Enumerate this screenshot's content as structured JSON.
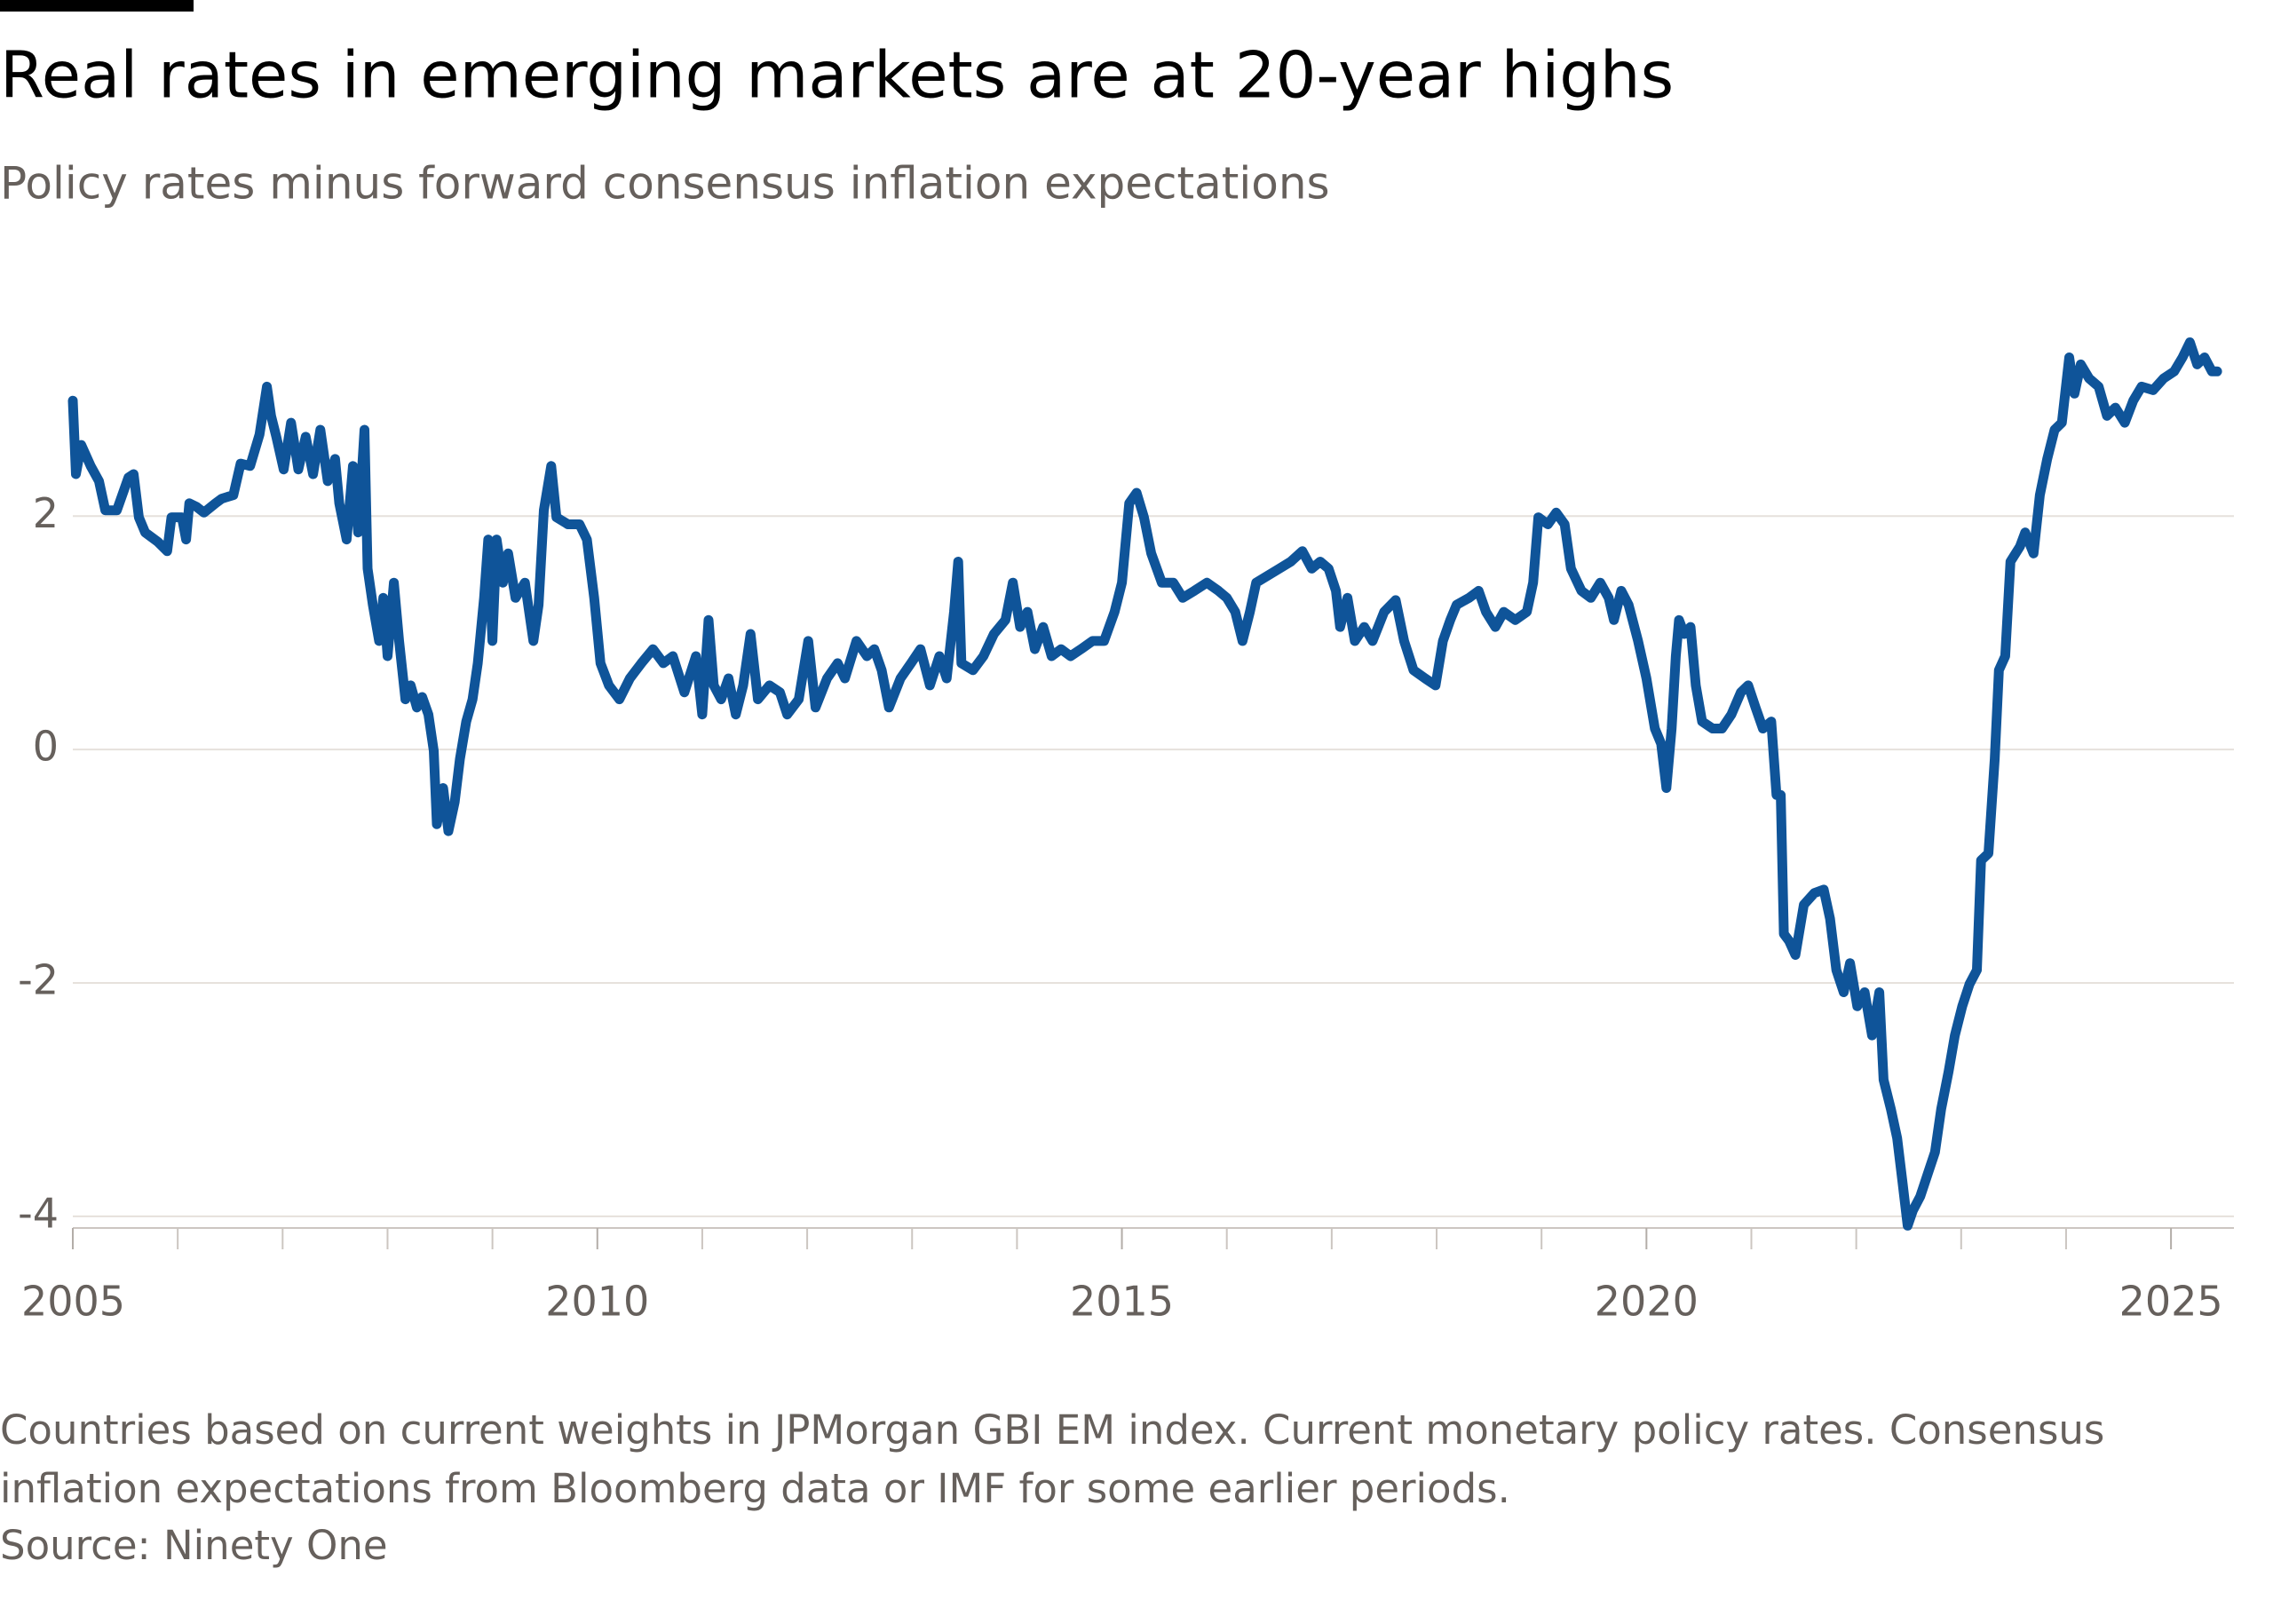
{
  "chart_data": {
    "type": "line",
    "title": "Real rates in emerging markets are at 20-year highs",
    "subtitle": "Policy rates minus forward consensus inflation expectations",
    "notes": [
      "Countries based on current weights in JPMorgan GBI EM index. Current monetary policy rates. Consensus",
      "inflation expectations from Bloomberg data or IMF for some earlier periods."
    ],
    "source": "Source: Ninety One",
    "xlim": [
      2005,
      2025.6
    ],
    "xticks": [
      2005,
      2010,
      2015,
      2020,
      2025
    ],
    "xminorticks": [
      2006,
      2007,
      2008,
      2009,
      2011,
      2012,
      2013,
      2014,
      2016,
      2017,
      2018,
      2019,
      2021,
      2022,
      2023,
      2024
    ],
    "ylim": [
      -4.1,
      3.6
    ],
    "yticks": [
      2,
      0,
      -2,
      -4
    ],
    "grid": true,
    "series": [
      {
        "color": "#0f5499",
        "x": [
          2005,
          2005.03,
          2005.08,
          2005.17,
          2005.25,
          2005.31,
          2005.42,
          2005.53,
          2005.58,
          2005.63,
          2005.69,
          2005.81,
          2005.9,
          2005.94,
          2006.04,
          2006.08,
          2006.11,
          2006.18,
          2006.25,
          2006.36,
          2006.42,
          2006.53,
          2006.6,
          2006.69,
          2006.78,
          2006.85,
          2006.89,
          2006.94,
          2007.01,
          2007.08,
          2007.15,
          2007.22,
          2007.29,
          2007.36,
          2007.43,
          2007.5,
          2007.54,
          2007.61,
          2007.67,
          2007.72,
          2007.78,
          2007.81,
          2007.86,
          2007.92,
          2007.96,
          2008.0,
          2008.06,
          2008.11,
          2008.17,
          2008.22,
          2008.28,
          2008.33,
          2008.39,
          2008.44,
          2008.47,
          2008.53,
          2008.58,
          2008.64,
          2008.69,
          2008.75,
          2008.81,
          2008.86,
          2008.92,
          2008.96,
          2009.0,
          2009.04,
          2009.1,
          2009.15,
          2009.22,
          2009.31,
          2009.39,
          2009.44,
          2009.49,
          2009.56,
          2009.61,
          2009.72,
          2009.83,
          2009.9,
          2009.97,
          2010.03,
          2010.11,
          2010.21,
          2010.31,
          2010.42,
          2010.53,
          2010.63,
          2010.72,
          2010.83,
          2010.94,
          2011.0,
          2011.06,
          2011.11,
          2011.18,
          2011.25,
          2011.32,
          2011.39,
          2011.46,
          2011.53,
          2011.64,
          2011.74,
          2011.81,
          2011.92,
          2012.01,
          2012.08,
          2012.19,
          2012.29,
          2012.36,
          2012.47,
          2012.57,
          2012.64,
          2012.71,
          2012.78,
          2012.89,
          2012.99,
          2013.08,
          2013.17,
          2013.26,
          2013.33,
          2013.4,
          2013.44,
          2013.47,
          2013.58,
          2013.68,
          2013.78,
          2013.89,
          2013.96,
          2014.03,
          2014.1,
          2014.17,
          2014.25,
          2014.33,
          2014.42,
          2014.51,
          2014.61,
          2014.72,
          2014.83,
          2014.93,
          2015.0,
          2015.07,
          2015.14,
          2015.21,
          2015.28,
          2015.38,
          2015.49,
          2015.58,
          2015.69,
          2015.81,
          2015.92,
          2016.0,
          2016.08,
          2016.15,
          2016.22,
          2016.28,
          2016.39,
          2016.5,
          2016.61,
          2016.72,
          2016.81,
          2016.89,
          2016.97,
          2017.04,
          2017.08,
          2017.15,
          2017.22,
          2017.31,
          2017.39,
          2017.5,
          2017.61,
          2017.69,
          2017.78,
          2017.89,
          2017.99,
          2018.06,
          2018.13,
          2018.19,
          2018.31,
          2018.4,
          2018.47,
          2018.56,
          2018.64,
          2018.75,
          2018.86,
          2018.92,
          2018.97,
          2019.06,
          2019.14,
          2019.22,
          2019.28,
          2019.38,
          2019.47,
          2019.56,
          2019.64,
          2019.69,
          2019.76,
          2019.83,
          2019.92,
          2020.0,
          2020.08,
          2020.14,
          2020.19,
          2020.24,
          2020.28,
          2020.31,
          2020.36,
          2020.42,
          2020.47,
          2020.53,
          2020.63,
          2020.72,
          2020.81,
          2020.9,
          2020.97,
          2021.04,
          2021.11,
          2021.19,
          2021.24,
          2021.28,
          2021.31,
          2021.36,
          2021.42,
          2021.5,
          2021.6,
          2021.69,
          2021.75,
          2021.81,
          2021.88,
          2021.94,
          2022.01,
          2022.08,
          2022.15,
          2022.22,
          2022.26,
          2022.33,
          2022.39,
          2022.44,
          2022.49,
          2022.54,
          2022.61,
          2022.68,
          2022.75,
          2022.81,
          2022.88,
          2022.94,
          2023.01,
          2023.08,
          2023.15,
          2023.19,
          2023.26,
          2023.32,
          2023.36,
          2023.42,
          2023.47,
          2023.56,
          2023.61,
          2023.69,
          2023.75,
          2023.82,
          2023.89,
          2023.96,
          2024.03,
          2024.08,
          2024.14,
          2024.22,
          2024.31,
          2024.39,
          2024.47,
          2024.56,
          2024.64,
          2024.72,
          2024.83,
          2024.93,
          2025.03,
          2025.11,
          2025.18,
          2025.25,
          2025.32,
          2025.39,
          2025.44
        ],
        "values": [
          2.99,
          2.36,
          2.61,
          2.43,
          2.3,
          2.05,
          2.05,
          2.33,
          2.36,
          1.99,
          1.86,
          1.78,
          1.7,
          1.99,
          1.99,
          1.8,
          2.11,
          2.08,
          2.03,
          2.11,
          2.15,
          2.18,
          2.45,
          2.43,
          2.7,
          3.11,
          2.86,
          2.68,
          2.4,
          2.8,
          2.4,
          2.68,
          2.36,
          2.74,
          2.3,
          2.49,
          2.11,
          1.8,
          2.43,
          1.86,
          2.74,
          1.55,
          1.24,
          0.93,
          1.3,
          0.8,
          1.43,
          0.93,
          0.43,
          0.55,
          0.36,
          0.45,
          0.3,
          -0.01,
          -0.64,
          -0.33,
          -0.7,
          -0.45,
          -0.08,
          0.24,
          0.43,
          0.74,
          1.3,
          1.8,
          0.93,
          1.8,
          1.43,
          1.68,
          1.3,
          1.43,
          0.93,
          1.24,
          2.05,
          2.43,
          1.99,
          1.93,
          1.93,
          1.8,
          1.3,
          0.74,
          0.55,
          0.43,
          0.61,
          0.74,
          0.86,
          0.74,
          0.8,
          0.49,
          0.8,
          0.3,
          1.11,
          0.55,
          0.43,
          0.61,
          0.3,
          0.55,
          0.99,
          0.43,
          0.55,
          0.49,
          0.3,
          0.43,
          0.93,
          0.36,
          0.61,
          0.74,
          0.61,
          0.93,
          0.8,
          0.86,
          0.68,
          0.36,
          0.61,
          0.74,
          0.86,
          0.55,
          0.8,
          0.61,
          1.18,
          1.61,
          0.74,
          0.68,
          0.8,
          0.99,
          1.11,
          1.43,
          1.05,
          1.18,
          0.86,
          1.05,
          0.8,
          0.86,
          0.8,
          0.86,
          0.93,
          0.93,
          1.18,
          1.43,
          2.11,
          2.2,
          1.99,
          1.68,
          1.43,
          1.43,
          1.3,
          1.36,
          1.43,
          1.36,
          1.3,
          1.18,
          0.93,
          1.18,
          1.43,
          1.49,
          1.55,
          1.61,
          1.7,
          1.55,
          1.61,
          1.55,
          1.36,
          1.05,
          1.3,
          0.93,
          1.05,
          0.93,
          1.18,
          1.28,
          0.93,
          0.68,
          0.61,
          0.55,
          0.93,
          1.11,
          1.24,
          1.3,
          1.36,
          1.18,
          1.05,
          1.18,
          1.11,
          1.18,
          1.43,
          1.99,
          1.93,
          2.03,
          1.93,
          1.55,
          1.36,
          1.3,
          1.43,
          1.3,
          1.11,
          1.36,
          1.24,
          0.93,
          0.61,
          0.18,
          0.05,
          -0.33,
          0.18,
          0.8,
          1.11,
          0.99,
          1.05,
          0.55,
          0.24,
          0.18,
          0.18,
          0.3,
          0.49,
          0.55,
          0.36,
          0.18,
          0.24,
          -0.39,
          -0.39,
          -1.58,
          -1.64,
          -1.76,
          -1.33,
          -1.23,
          -1.2,
          -1.45,
          -1.89,
          -2.08,
          -1.83,
          -2.2,
          -2.08,
          -2.45,
          -2.08,
          -2.83,
          -3.08,
          -3.33,
          -3.7,
          -4.08,
          -3.95,
          -3.83,
          -3.64,
          -3.45,
          -3.08,
          -2.76,
          -2.45,
          -2.2,
          -2.01,
          -1.89,
          -0.95,
          -0.89,
          -0.08,
          0.68,
          0.8,
          1.61,
          1.74,
          1.86,
          1.68,
          2.18,
          2.49,
          2.74,
          2.8,
          3.36,
          3.05,
          3.3,
          3.18,
          3.11,
          2.86,
          2.93,
          2.8,
          2.99,
          3.11,
          3.08,
          3.18,
          3.24,
          3.36,
          3.49,
          3.3,
          3.36,
          3.24,
          3.24
        ]
      }
    ]
  }
}
